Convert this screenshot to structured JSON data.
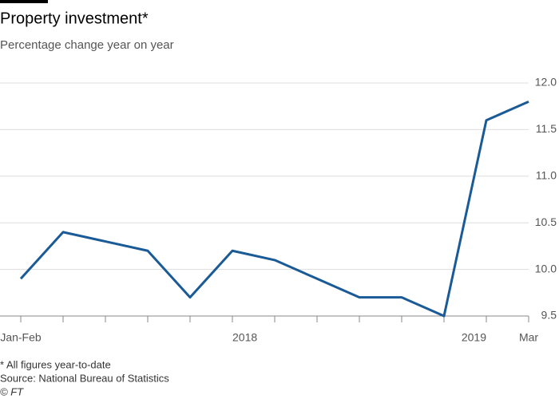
{
  "chart_data": {
    "type": "line",
    "title": "Property investment*",
    "subtitle": "Percentage change year on year",
    "notes": [
      "* All figures year-to-date",
      "Source: National Bureau of Statistics",
      "© FT"
    ],
    "categories": [
      "Jan-Feb",
      null,
      null,
      null,
      null,
      "2018",
      null,
      null,
      null,
      null,
      null,
      "2019",
      "Mar"
    ],
    "series": [
      {
        "name": "Property investment",
        "color": "#1a5a96",
        "values": [
          9.9,
          10.4,
          10.3,
          10.2,
          9.7,
          10.2,
          10.1,
          9.9,
          9.7,
          9.7,
          9.5,
          11.6,
          11.8
        ]
      }
    ],
    "ylim": [
      9.5,
      12.0
    ],
    "yticks": [
      9.5,
      {
        "value": 10.0,
        "label": "10.0"
      },
      10.5,
      {
        "value": 11.0,
        "label": "11.0"
      },
      11.5,
      {
        "value": 12.0,
        "label": "12.0"
      }
    ],
    "grid": true
  }
}
